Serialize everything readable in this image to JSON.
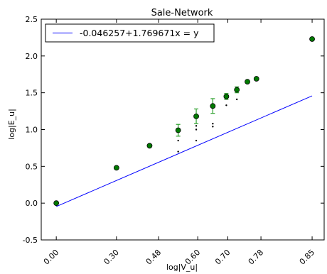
{
  "chart_data": {
    "type": "scatter",
    "title": "Sale-Network",
    "xlabel": "log|V_u|",
    "ylabel": "log|E_u|",
    "xlim": [
      -0.05,
      0.89
    ],
    "ylim": [
      -0.5,
      2.5
    ],
    "xticks": [
      0.0,
      0.3,
      0.48,
      0.6,
      0.7,
      0.78,
      0.85
    ],
    "xtick_positions": [
      0.0,
      0.2,
      0.34,
      0.47,
      0.57,
      0.68,
      0.85
    ],
    "yticks": [
      -0.5,
      0.0,
      0.5,
      1.0,
      1.5,
      2.0,
      2.5
    ],
    "grid": false,
    "legend": {
      "placement": "top-left",
      "entry": "-0.046257+1.769671x = y"
    },
    "fit_line": {
      "intercept": -0.046257,
      "slope": 1.769671,
      "color": "#0000ff"
    },
    "colors": {
      "points": "#007a00",
      "points_edge": "#000000",
      "errorbars": "#2ca02c",
      "samples": "#000000"
    },
    "points": [
      {
        "x": 0.0,
        "y": 0.0
      },
      {
        "x": 0.2,
        "y": 0.48
      },
      {
        "x": 0.31,
        "y": 0.78
      },
      {
        "x": 0.405,
        "y": 0.99,
        "err": 0.08
      },
      {
        "x": 0.465,
        "y": 1.18,
        "err": 0.1
      },
      {
        "x": 0.52,
        "y": 1.32,
        "err": 0.1
      },
      {
        "x": 0.565,
        "y": 1.45,
        "err": 0.04
      },
      {
        "x": 0.6,
        "y": 1.54,
        "err": 0.04
      },
      {
        "x": 0.635,
        "y": 1.65
      },
      {
        "x": 0.665,
        "y": 1.69
      },
      {
        "x": 0.85,
        "y": 2.23
      }
    ],
    "samples": [
      {
        "x": 0.405,
        "y": 0.85
      },
      {
        "x": 0.405,
        "y": 0.7
      },
      {
        "x": 0.465,
        "y": 1.05
      },
      {
        "x": 0.465,
        "y": 1.0
      },
      {
        "x": 0.465,
        "y": 0.85
      },
      {
        "x": 0.52,
        "y": 1.08
      },
      {
        "x": 0.52,
        "y": 1.04
      },
      {
        "x": 0.565,
        "y": 1.33
      },
      {
        "x": 0.6,
        "y": 1.41
      }
    ]
  }
}
